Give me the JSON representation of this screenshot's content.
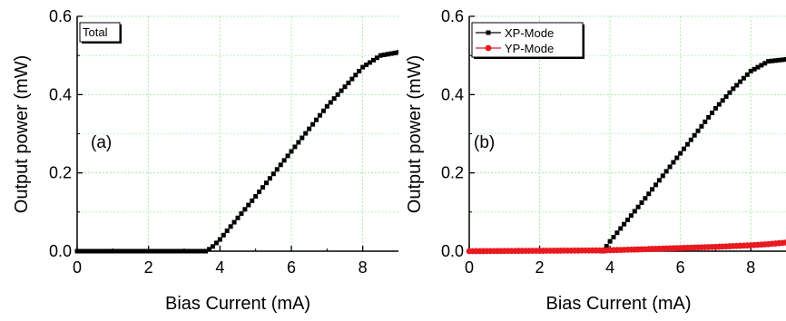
{
  "chart_data": [
    {
      "type": "scatter",
      "panel_label": "(a)",
      "xlabel": "Bias Current (mA)",
      "ylabel": "Output power (mW)",
      "xlim": [
        0,
        9
      ],
      "ylim": [
        0,
        0.6
      ],
      "x_ticks": [
        "0",
        "2",
        "4",
        "6",
        "8"
      ],
      "y_ticks": [
        "0.0",
        "0.2",
        "0.4",
        "0.6"
      ],
      "grid": true,
      "legend": {
        "placement": "top-left",
        "entries": [
          "Total"
        ]
      },
      "series": [
        {
          "name": "Total",
          "color": "#000000",
          "marker": "square",
          "points": [
            [
              0,
              0
            ],
            [
              3.6,
              0
            ],
            [
              3.7,
              0.005
            ],
            [
              3.8,
              0.012
            ],
            [
              4.0,
              0.03
            ],
            [
              5.0,
              0.14
            ],
            [
              6.0,
              0.255
            ],
            [
              7.0,
              0.37
            ],
            [
              7.5,
              0.42
            ],
            [
              8.0,
              0.47
            ],
            [
              8.5,
              0.5
            ],
            [
              9.0,
              0.508
            ]
          ]
        }
      ]
    },
    {
      "type": "scatter",
      "panel_label": "(b)",
      "xlabel": "Bias Current (mA)",
      "ylabel": "Output power (mW)",
      "xlim": [
        0,
        9
      ],
      "ylim": [
        0,
        0.6
      ],
      "x_ticks": [
        "0",
        "2",
        "4",
        "6",
        "8"
      ],
      "y_ticks": [
        "0.0",
        "0.2",
        "0.4",
        "0.6"
      ],
      "grid": true,
      "legend": {
        "placement": "top-left",
        "entries": [
          "XP-Mode",
          "YP-Mode"
        ]
      },
      "series": [
        {
          "name": "XP-Mode",
          "color": "#000000",
          "marker": "square",
          "points": [
            [
              3.8,
              0
            ],
            [
              4.0,
              0.025
            ],
            [
              5.0,
              0.135
            ],
            [
              6.0,
              0.25
            ],
            [
              7.0,
              0.365
            ],
            [
              7.5,
              0.415
            ],
            [
              8.0,
              0.46
            ],
            [
              8.5,
              0.485
            ],
            [
              9.0,
              0.49
            ]
          ]
        },
        {
          "name": "YP-Mode",
          "color": "#e8191f",
          "marker": "circle",
          "points": [
            [
              0,
              0
            ],
            [
              2,
              0.001
            ],
            [
              3.8,
              0.002
            ],
            [
              5,
              0.005
            ],
            [
              6,
              0.008
            ],
            [
              7,
              0.011
            ],
            [
              8,
              0.015
            ],
            [
              8.5,
              0.018
            ],
            [
              9.0,
              0.022
            ]
          ]
        }
      ]
    }
  ]
}
